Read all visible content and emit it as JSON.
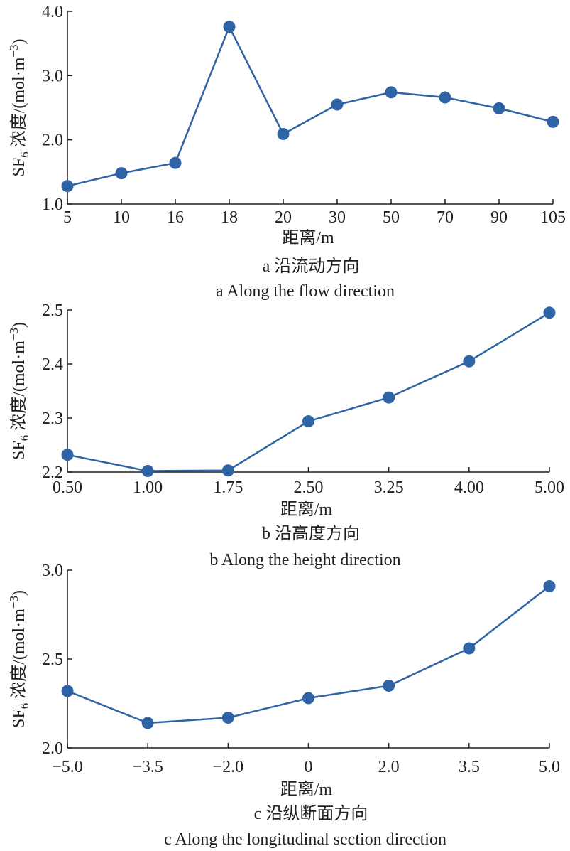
{
  "chart_data": [
    {
      "type": "line",
      "panel": "a",
      "categories": [
        "5",
        "10",
        "16",
        "18",
        "20",
        "30",
        "50",
        "70",
        "90",
        "105"
      ],
      "values": [
        1.28,
        1.48,
        1.64,
        3.76,
        2.09,
        2.55,
        2.74,
        2.66,
        2.49,
        2.28
      ],
      "ylim": [
        1.0,
        4.0
      ],
      "yticks": [
        "1.0",
        "2.0",
        "3.0",
        "4.0"
      ],
      "xlabel": "距离/m",
      "ylabel": {
        "prefix": "SF",
        "sub": "6",
        "mid": " 浓度/(mol·m",
        "sup": "−3",
        "suffix": ")"
      },
      "caption_cn": "a  沿流动方向",
      "caption_en": "a  Along the flow direction"
    },
    {
      "type": "line",
      "panel": "b",
      "categories": [
        "0.50",
        "1.00",
        "1.75",
        "2.50",
        "3.25",
        "4.00",
        "5.00"
      ],
      "values": [
        2.232,
        2.202,
        2.203,
        2.294,
        2.338,
        2.405,
        2.495
      ],
      "ylim": [
        2.2,
        2.5
      ],
      "yticks": [
        "2.2",
        "2.3",
        "2.4",
        "2.5"
      ],
      "xlabel": "距离/m",
      "ylabel": {
        "prefix": "SF",
        "sub": "6",
        "mid": " 浓度/(mol·m",
        "sup": "−3",
        "suffix": ")"
      },
      "caption_cn": "b  沿高度方向",
      "caption_en": "b  Along the height direction"
    },
    {
      "type": "line",
      "panel": "c",
      "categories": [
        "−5.0",
        "−3.5",
        "−2.0",
        "0",
        "2.0",
        "3.5",
        "5.0"
      ],
      "values": [
        2.32,
        2.14,
        2.17,
        2.28,
        2.35,
        2.56,
        2.91
      ],
      "ylim": [
        2.0,
        3.0
      ],
      "yticks": [
        "2.0",
        "2.5",
        "3.0"
      ],
      "xlabel": "距离/m",
      "ylabel": {
        "prefix": "SF",
        "sub": "6",
        "mid": " 浓度/(mol·m",
        "sup": "−3",
        "suffix": ")"
      },
      "caption_cn": "c  沿纵断面方向",
      "caption_en": "c  Along the longitudinal section direction"
    }
  ],
  "colors": {
    "series": "#2e64a5",
    "axis": "#231f20"
  }
}
